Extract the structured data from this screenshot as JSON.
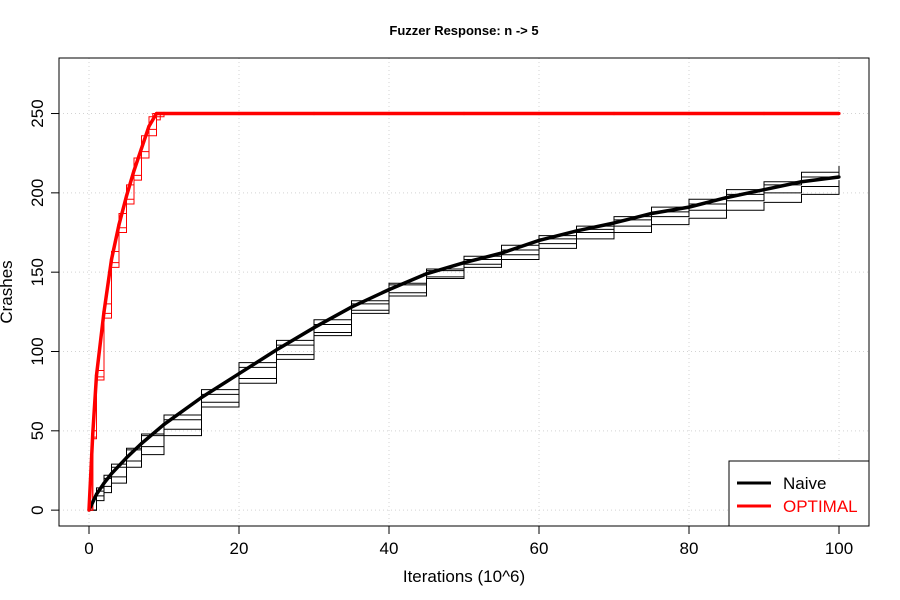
{
  "chart_data": {
    "type": "line",
    "title": "Fuzzer Response: n -> 5",
    "xlabel": "Iterations (10^6)",
    "ylabel": "Crashes",
    "xlim": [
      -4,
      104
    ],
    "ylim": [
      -10,
      285
    ],
    "xticks": [
      0,
      20,
      40,
      60,
      80,
      100
    ],
    "yticks": [
      0,
      50,
      100,
      150,
      200,
      250
    ],
    "grid": true,
    "legend_position": "bottom-right",
    "legend": [
      {
        "name": "Naive",
        "color": "#000000"
      },
      {
        "name": "OPTIMAL",
        "color": "#ff0000"
      }
    ],
    "series": [
      {
        "name": "Naive",
        "color": "#000000",
        "x": [
          0,
          1,
          2,
          3,
          5,
          7,
          10,
          15,
          20,
          25,
          30,
          35,
          40,
          45,
          50,
          55,
          60,
          65,
          70,
          75,
          80,
          85,
          90,
          95,
          100
        ],
        "y": [
          0,
          10,
          17,
          23,
          33,
          42,
          54,
          71,
          86,
          101,
          115,
          128,
          139,
          149,
          156,
          162,
          170,
          176,
          181,
          187,
          191,
          197,
          202,
          207,
          210
        ]
      },
      {
        "name": "OPTIMAL",
        "color": "#ff0000",
        "x": [
          0,
          0.5,
          1,
          2,
          3,
          4,
          5,
          6,
          7,
          8,
          9,
          10,
          20,
          30,
          40,
          50,
          60,
          70,
          80,
          90,
          100
        ],
        "y": [
          0,
          48,
          85,
          125,
          158,
          180,
          198,
          214,
          228,
          242,
          250,
          250,
          250,
          250,
          250,
          250,
          250,
          250,
          250,
          250,
          250
        ]
      }
    ],
    "replicate_runs": {
      "Naive": [
        {
          "x": [
            0,
            1,
            2,
            3,
            5,
            7,
            10,
            15,
            20,
            25,
            30,
            35,
            40,
            45,
            50,
            55,
            60,
            65,
            70,
            75,
            80,
            85,
            90,
            95,
            100
          ],
          "y": [
            0,
            12,
            20,
            27,
            38,
            48,
            60,
            76,
            93,
            107,
            120,
            132,
            143,
            152,
            160,
            167,
            173,
            179,
            185,
            191,
            196,
            202,
            207,
            213,
            217
          ]
        },
        {
          "x": [
            0,
            1,
            2,
            3,
            5,
            7,
            10,
            15,
            20,
            25,
            30,
            35,
            40,
            45,
            50,
            55,
            60,
            65,
            70,
            75,
            80,
            85,
            90,
            95,
            100
          ],
          "y": [
            0,
            6,
            11,
            17,
            27,
            35,
            47,
            65,
            80,
            95,
            110,
            124,
            135,
            146,
            153,
            158,
            165,
            171,
            175,
            180,
            184,
            189,
            194,
            199,
            205
          ]
        },
        {
          "x": [
            0,
            1,
            2,
            3,
            5,
            7,
            10,
            15,
            20,
            25,
            30,
            35,
            40,
            45,
            50,
            55,
            60,
            65,
            70,
            75,
            80,
            85,
            90,
            95,
            100
          ],
          "y": [
            0,
            14,
            22,
            29,
            39,
            47,
            57,
            73,
            90,
            104,
            117,
            130,
            142,
            151,
            158,
            164,
            171,
            177,
            183,
            188,
            193,
            199,
            205,
            210,
            214
          ]
        },
        {
          "x": [
            0,
            1,
            2,
            3,
            5,
            7,
            10,
            15,
            20,
            25,
            30,
            35,
            40,
            45,
            50,
            55,
            60,
            65,
            70,
            75,
            80,
            85,
            90,
            95,
            100
          ],
          "y": [
            0,
            9,
            15,
            21,
            31,
            40,
            51,
            68,
            83,
            98,
            112,
            126,
            137,
            147,
            155,
            161,
            168,
            175,
            179,
            185,
            189,
            195,
            200,
            204,
            208
          ]
        }
      ],
      "OPTIMAL": [
        {
          "x": [
            0,
            0.5,
            1,
            2,
            3,
            4,
            5,
            6,
            7,
            8,
            8.5,
            10,
            100
          ],
          "y": [
            0,
            50,
            88,
            130,
            163,
            187,
            205,
            222,
            236,
            248,
            250,
            250,
            250
          ]
        },
        {
          "x": [
            0,
            0.5,
            1,
            2,
            3,
            4,
            5,
            6,
            7,
            8,
            9,
            9.5,
            10,
            100
          ],
          "y": [
            0,
            45,
            82,
            121,
            153,
            175,
            193,
            208,
            222,
            236,
            246,
            250,
            250,
            250
          ]
        },
        {
          "x": [
            0,
            0.5,
            1,
            2,
            3,
            4,
            5,
            6,
            7,
            8,
            9,
            10,
            100
          ],
          "y": [
            0,
            46,
            84,
            124,
            156,
            178,
            196,
            211,
            226,
            240,
            248,
            250,
            250
          ]
        }
      ]
    }
  }
}
